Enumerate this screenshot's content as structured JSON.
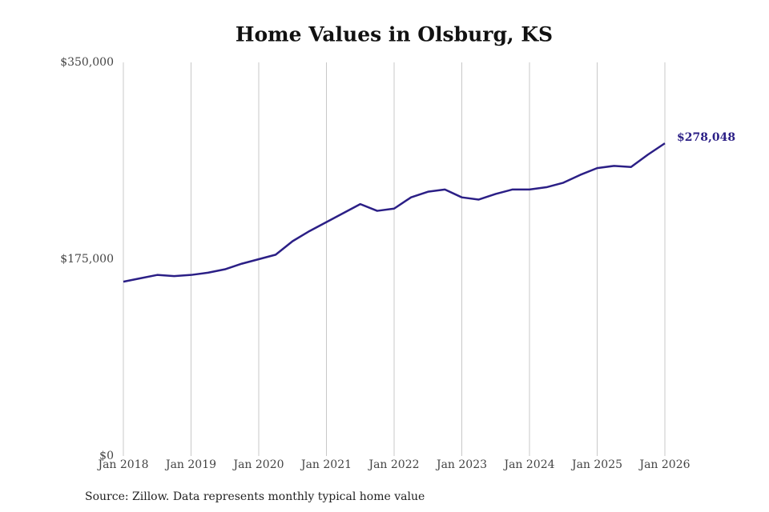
{
  "chart_data": {
    "type": "line",
    "title": "Home Values in Olsburg, KS",
    "source": "Source: Zillow. Data represents monthly typical home value",
    "x": [
      2018,
      2018.25,
      2018.5,
      2018.75,
      2019,
      2019.25,
      2019.5,
      2019.75,
      2020,
      2020.25,
      2020.5,
      2020.75,
      2021,
      2021.25,
      2021.5,
      2021.75,
      2022,
      2022.25,
      2022.5,
      2022.75,
      2023,
      2023.25,
      2023.5,
      2023.75,
      2024,
      2024.25,
      2024.5,
      2024.75,
      2025,
      2025.25,
      2025.5,
      2025.75,
      2026
    ],
    "series": [
      {
        "name": "Home value",
        "color": "#2b1f86",
        "values": [
          155000,
          158000,
          161000,
          160000,
          161000,
          163000,
          166000,
          171000,
          175000,
          179000,
          191000,
          200000,
          208000,
          216000,
          224000,
          218000,
          220000,
          230000,
          235000,
          237000,
          230000,
          228000,
          233000,
          237000,
          237000,
          239000,
          243000,
          250000,
          256000,
          258000,
          257000,
          268000,
          278048
        ],
        "value_labels": [
          null,
          null,
          null,
          null,
          null,
          null,
          null,
          null,
          null,
          null,
          null,
          null,
          null,
          null,
          null,
          null,
          null,
          null,
          null,
          null,
          null,
          null,
          null,
          null,
          null,
          null,
          null,
          null,
          null,
          null,
          null,
          null,
          "$278,048"
        ]
      }
    ],
    "xlim": [
      2018,
      2026
    ],
    "xticks": [
      {
        "value": 2018,
        "label": "Jan 2018"
      },
      {
        "value": 2019,
        "label": "Jan 2019"
      },
      {
        "value": 2020,
        "label": "Jan 2020"
      },
      {
        "value": 2021,
        "label": "Jan 2021"
      },
      {
        "value": 2022,
        "label": "Jan 2022"
      },
      {
        "value": 2023,
        "label": "Jan 2023"
      },
      {
        "value": 2024,
        "label": "Jan 2024"
      },
      {
        "value": 2025,
        "label": "Jan 2025"
      },
      {
        "value": 2026,
        "label": "Jan 2026"
      }
    ],
    "ylim": [
      0,
      350000
    ],
    "yticks": [
      {
        "value": 0,
        "label": "$0"
      },
      {
        "value": 175000,
        "label": "$175,000"
      },
      {
        "value": 350000,
        "label": "$350,000"
      }
    ],
    "grid": "x"
  }
}
